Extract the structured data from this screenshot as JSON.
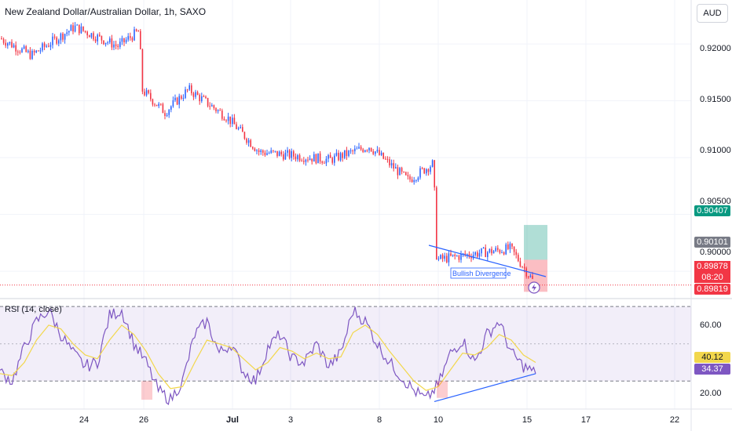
{
  "header": {
    "title": "New Zealand Dollar/Australian Dollar, 1h, SAXO",
    "currency": "AUD"
  },
  "rsi_panel": {
    "title": "RSI (14, close)"
  },
  "tags": {
    "take_profit": "0.90407",
    "entry": "0.90101",
    "last_price": "0.89878",
    "countdown": "08:20",
    "stop_loss": "0.89819",
    "rsi_ma": "40.12",
    "rsi": "34.37"
  },
  "annotation": {
    "label": "Bullish Divergence"
  },
  "colors": {
    "up": "#2962ff",
    "down": "#f23645",
    "rsi_line": "#7e57c2",
    "rsi_ma": "#f2d74c",
    "tp_tag": "#089981",
    "sl_tag": "#f23645",
    "entry_tag": "#787b86",
    "trendline": "#2962ff"
  },
  "chart_data": [
    {
      "type": "candlestick",
      "title": "New Zealand Dollar/Australian Dollar, 1h, SAXO",
      "y_axis_ticks": [
        "0.92000",
        "0.91500",
        "0.91000",
        "0.90500",
        "0.90000"
      ],
      "x_axis_ticks": [
        "24",
        "26",
        "Jul",
        "3",
        "8",
        "10",
        "15",
        "17",
        "22"
      ],
      "ylim": [
        0.8978,
        0.9218
      ],
      "approx_close_path": [
        {
          "x": "Jun 21",
          "y": 0.9205
        },
        {
          "x": "Jun 23",
          "y": 0.919
        },
        {
          "x": "Jun 24",
          "y": 0.9215
        },
        {
          "x": "Jun 25",
          "y": 0.9198
        },
        {
          "x": "Jun 26",
          "y": 0.9212
        },
        {
          "x": "Jun 26",
          "y": 0.916
        },
        {
          "x": "Jun 27",
          "y": 0.914
        },
        {
          "x": "Jun 28",
          "y": 0.916
        },
        {
          "x": "Jul 1",
          "y": 0.9135
        },
        {
          "x": "Jul 2",
          "y": 0.9105
        },
        {
          "x": "Jul 3",
          "y": 0.9102
        },
        {
          "x": "Jul 5",
          "y": 0.9098
        },
        {
          "x": "Jul 8",
          "y": 0.911
        },
        {
          "x": "Jul 9",
          "y": 0.908
        },
        {
          "x": "Jul 10",
          "y": 0.9095
        },
        {
          "x": "Jul 10",
          "y": 0.901
        },
        {
          "x": "Jul 11",
          "y": 0.9015
        },
        {
          "x": "Jul 12",
          "y": 0.902
        },
        {
          "x": "Jul 15",
          "y": 0.8988
        }
      ],
      "last_price": 0.89878,
      "position": {
        "take_profit": 0.90407,
        "entry": 0.90101,
        "stop_loss": 0.89819
      },
      "annotation": "Bullish Divergence"
    },
    {
      "type": "line",
      "title": "RSI (14, close)",
      "y_axis_ticks": [
        "60.00",
        "20.00"
      ],
      "ylim": [
        15,
        73
      ],
      "bands": {
        "upper": 70,
        "middle": 50,
        "lower": 30
      },
      "series": [
        {
          "name": "RSI",
          "values": [
            35,
            30,
            48,
            62,
            68,
            55,
            45,
            38,
            40,
            65,
            68,
            50,
            40,
            25,
            20,
            30,
            55,
            62,
            45,
            50,
            35,
            30,
            48,
            55,
            42,
            40,
            50,
            38,
            45,
            68,
            62,
            50,
            40,
            32,
            25,
            20,
            28,
            45,
            52,
            40,
            55,
            62,
            45,
            38,
            34
          ]
        },
        {
          "name": "MA",
          "values": [
            34,
            33,
            40,
            52,
            60,
            58,
            50,
            44,
            42,
            52,
            60,
            55,
            46,
            34,
            26,
            27,
            40,
            52,
            50,
            48,
            42,
            36,
            40,
            48,
            46,
            42,
            45,
            42,
            43,
            56,
            60,
            55,
            46,
            38,
            30,
            25,
            27,
            36,
            45,
            44,
            48,
            55,
            52,
            44,
            40
          ]
        }
      ],
      "values_latest": {
        "RSI": 34.37,
        "MA": 40.12
      }
    }
  ]
}
